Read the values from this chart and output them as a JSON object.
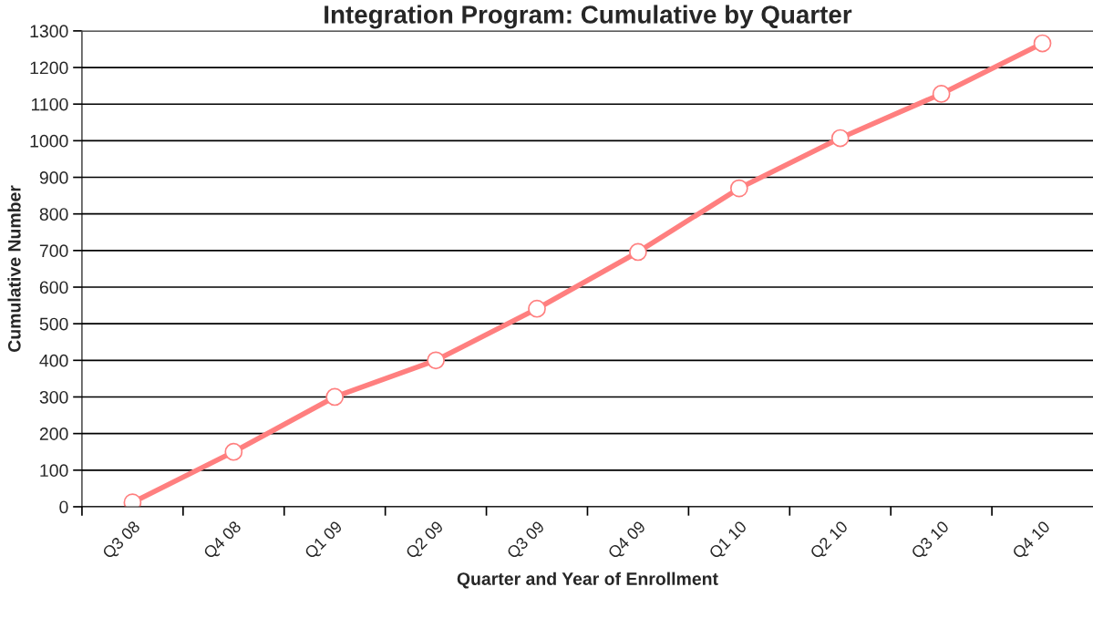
{
  "chart_data": {
    "type": "line",
    "title": "Integration Program: Cumulative by Quarter",
    "xlabel": "Quarter and Year of Enrollment",
    "ylabel": "Cumulative Number",
    "categories": [
      "Q3 08",
      "Q4 08",
      "Q1 09",
      "Q2 09",
      "Q3 09",
      "Q4 09",
      "Q1 10",
      "Q2 10",
      "Q3 10",
      "Q4 10"
    ],
    "series": [
      {
        "color": "#ff7f7f",
        "values": [
          12,
          150,
          300,
          400,
          541,
          696,
          870,
          1007,
          1128,
          1266
        ]
      }
    ],
    "ylim": [
      0,
      1300
    ],
    "yticks": [
      0,
      100,
      200,
      300,
      400,
      500,
      600,
      700,
      800,
      900,
      1000,
      1100,
      1200,
      1300
    ],
    "grid": "y",
    "marker": "circle",
    "line_style": "solid"
  }
}
